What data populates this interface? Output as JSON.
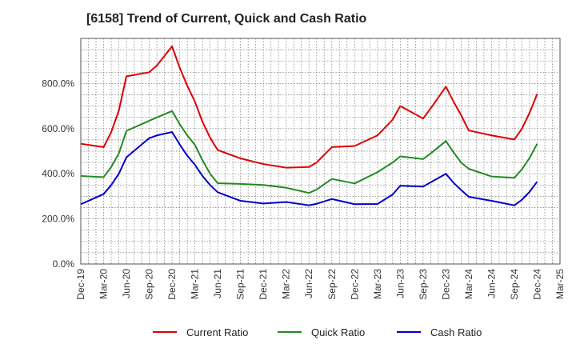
{
  "chart_data": {
    "type": "line",
    "title": "[6158]  Trend of Current, Quick and Cash Ratio",
    "xlabel": "",
    "ylabel": "",
    "ylim": [
      0,
      1000
    ],
    "yticks": [
      0,
      200,
      400,
      600,
      800
    ],
    "ytick_labels": [
      "0.0%",
      "200.0%",
      "400.0%",
      "600.0%",
      "800.0%"
    ],
    "x_tick_labels": [
      "Dec-19",
      "Mar-20",
      "Jun-20",
      "Sep-20",
      "Dec-20",
      "Mar-21",
      "Jun-21",
      "Sep-21",
      "Dec-21",
      "Mar-22",
      "Jun-22",
      "Sep-22",
      "Dec-22",
      "Mar-23",
      "Jun-23",
      "Sep-23",
      "Dec-23",
      "Mar-24",
      "Jun-24",
      "Sep-24",
      "Dec-24",
      "Mar-25"
    ],
    "x_months": 63,
    "grid": true,
    "legend_position": "bottom",
    "series": [
      {
        "name": "Current Ratio",
        "color": "#dd0000",
        "points": [
          [
            0,
            533
          ],
          [
            3,
            518
          ],
          [
            4,
            585
          ],
          [
            5,
            680
          ],
          [
            6,
            832
          ],
          [
            9,
            850
          ],
          [
            10,
            880
          ],
          [
            12,
            965
          ],
          [
            13,
            870
          ],
          [
            14,
            790
          ],
          [
            15,
            720
          ],
          [
            16,
            630
          ],
          [
            17,
            560
          ],
          [
            18,
            505
          ],
          [
            21,
            468
          ],
          [
            24,
            443
          ],
          [
            27,
            427
          ],
          [
            30,
            430
          ],
          [
            31,
            450
          ],
          [
            33,
            518
          ],
          [
            36,
            523
          ],
          [
            39,
            570
          ],
          [
            41,
            640
          ],
          [
            42,
            700
          ],
          [
            45,
            645
          ],
          [
            46,
            690
          ],
          [
            48,
            786
          ],
          [
            49,
            720
          ],
          [
            50,
            660
          ],
          [
            51,
            592
          ],
          [
            54,
            570
          ],
          [
            57,
            552
          ],
          [
            58,
            600
          ],
          [
            59,
            670
          ],
          [
            60,
            754
          ]
        ]
      },
      {
        "name": "Quick Ratio",
        "color": "#228b22",
        "points": [
          [
            0,
            390
          ],
          [
            3,
            385
          ],
          [
            4,
            430
          ],
          [
            5,
            490
          ],
          [
            6,
            590
          ],
          [
            9,
            635
          ],
          [
            10,
            650
          ],
          [
            12,
            678
          ],
          [
            13,
            620
          ],
          [
            14,
            570
          ],
          [
            15,
            528
          ],
          [
            16,
            460
          ],
          [
            17,
            400
          ],
          [
            18,
            358
          ],
          [
            21,
            355
          ],
          [
            24,
            350
          ],
          [
            27,
            338
          ],
          [
            30,
            315
          ],
          [
            31,
            330
          ],
          [
            33,
            377
          ],
          [
            36,
            357
          ],
          [
            39,
            407
          ],
          [
            41,
            450
          ],
          [
            42,
            477
          ],
          [
            45,
            465
          ],
          [
            46,
            490
          ],
          [
            48,
            545
          ],
          [
            49,
            495
          ],
          [
            50,
            450
          ],
          [
            51,
            422
          ],
          [
            54,
            388
          ],
          [
            57,
            382
          ],
          [
            58,
            420
          ],
          [
            59,
            470
          ],
          [
            60,
            533
          ]
        ]
      },
      {
        "name": "Cash Ratio",
        "color": "#0000cc",
        "points": [
          [
            0,
            265
          ],
          [
            3,
            310
          ],
          [
            4,
            350
          ],
          [
            5,
            400
          ],
          [
            6,
            473
          ],
          [
            9,
            558
          ],
          [
            10,
            570
          ],
          [
            12,
            585
          ],
          [
            13,
            530
          ],
          [
            14,
            480
          ],
          [
            15,
            440
          ],
          [
            16,
            390
          ],
          [
            17,
            350
          ],
          [
            18,
            318
          ],
          [
            21,
            280
          ],
          [
            24,
            268
          ],
          [
            27,
            275
          ],
          [
            30,
            260
          ],
          [
            31,
            267
          ],
          [
            33,
            288
          ],
          [
            36,
            265
          ],
          [
            39,
            266
          ],
          [
            41,
            308
          ],
          [
            42,
            347
          ],
          [
            45,
            343
          ],
          [
            46,
            362
          ],
          [
            48,
            400
          ],
          [
            49,
            360
          ],
          [
            50,
            328
          ],
          [
            51,
            298
          ],
          [
            54,
            280
          ],
          [
            57,
            260
          ],
          [
            58,
            285
          ],
          [
            59,
            320
          ],
          [
            60,
            365
          ]
        ]
      }
    ]
  }
}
